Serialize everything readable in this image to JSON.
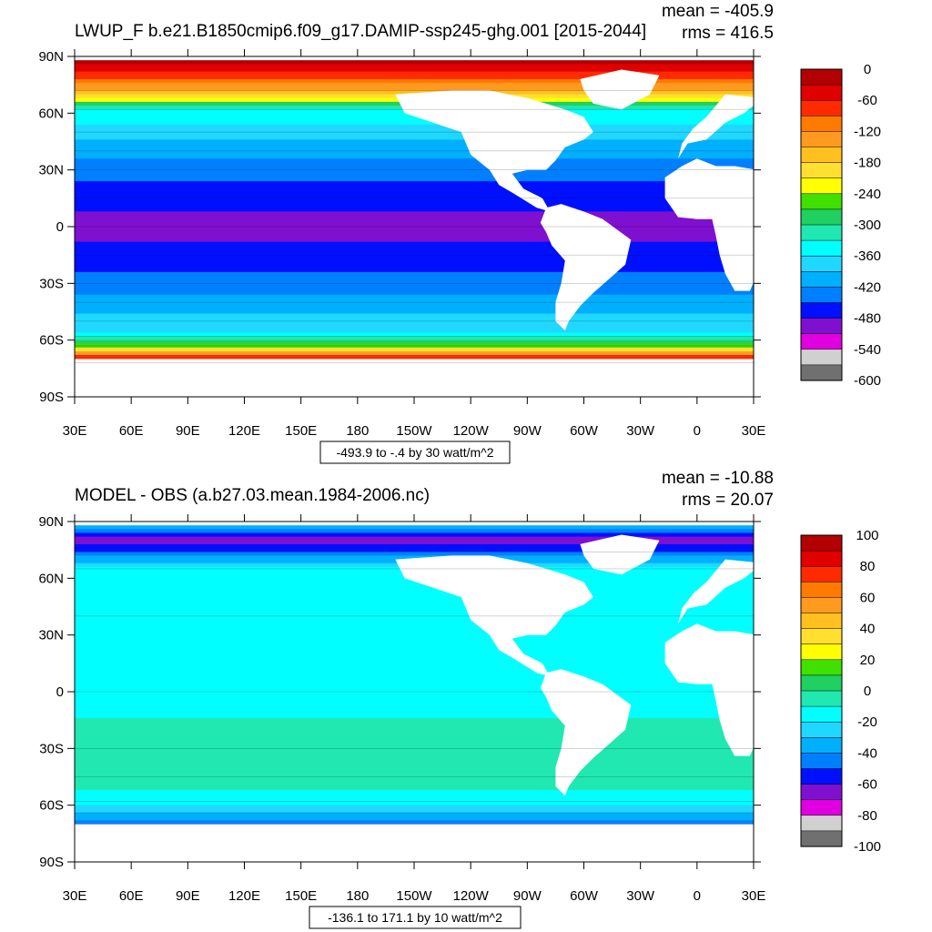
{
  "chart_data": [
    {
      "type": "heatmap",
      "title": "LWUP_F b.e21.B1850cmip6.f09_g17.DAMIP-ssp245-ghg.001 [2015-2044]",
      "stats": {
        "mean": "mean = -405.9",
        "rms": "rms = 416.5"
      },
      "subtitle": "-493.9 to -.4 by 30 watt/m^2",
      "x_ticks": [
        "30E",
        "60E",
        "90E",
        "120E",
        "150E",
        "180",
        "150W",
        "120W",
        "90W",
        "60W",
        "30W",
        "0",
        "30E"
      ],
      "y_ticks": [
        "90N",
        "60N",
        "30N",
        "0",
        "30S",
        "60S",
        "90S"
      ],
      "colorbar": {
        "labels": [
          "0",
          "-60",
          "-120",
          "-180",
          "-240",
          "-300",
          "-360",
          "-420",
          "-480",
          "-540",
          "-600"
        ],
        "colors": [
          "#b30000",
          "#e00000",
          "#ff2a00",
          "#ff7a00",
          "#ff9a20",
          "#ffc020",
          "#ffe030",
          "#ffff00",
          "#40e000",
          "#20d060",
          "#20e8b0",
          "#00ffff",
          "#20d8ff",
          "#00b0ff",
          "#0080ff",
          "#0010ff",
          "#8010d0",
          "#e000e0",
          "#d0d0d0",
          "#707070"
        ]
      },
      "zones": [
        {
          "lat": 87,
          "value": -20
        },
        {
          "lat": 80,
          "value": -80
        },
        {
          "lat": 72,
          "value": -150
        },
        {
          "lat": 62,
          "value": -330
        },
        {
          "lat": 50,
          "value": -380
        },
        {
          "lat": 40,
          "value": -410
        },
        {
          "lat": 30,
          "value": -440
        },
        {
          "lat": 15,
          "value": -470
        },
        {
          "lat": 0,
          "value": -495
        },
        {
          "lat": -15,
          "value": -470
        },
        {
          "lat": -30,
          "value": -440
        },
        {
          "lat": -40,
          "value": -410
        },
        {
          "lat": -50,
          "value": -380
        },
        {
          "lat": -58,
          "value": -350
        },
        {
          "lat": -63,
          "value": -250
        },
        {
          "lat": -68,
          "value": -100
        },
        {
          "lat": -72,
          "value": -30
        }
      ]
    },
    {
      "type": "heatmap",
      "title": "MODEL - OBS (a.b27.03.mean.1984-2006.nc)",
      "stats": {
        "mean": "mean = -10.88",
        "rms": "rms = 20.07"
      },
      "subtitle": "-136.1 to 171.1 by 10 watt/m^2",
      "x_ticks": [
        "30E",
        "60E",
        "90E",
        "120E",
        "150E",
        "180",
        "150W",
        "120W",
        "90W",
        "60W",
        "30W",
        "0",
        "30E"
      ],
      "y_ticks": [
        "90N",
        "60N",
        "30N",
        "0",
        "30S",
        "60S",
        "90S"
      ],
      "colorbar": {
        "labels": [
          "100",
          "80",
          "60",
          "40",
          "20",
          "0",
          "-20",
          "-40",
          "-60",
          "-80",
          "-100"
        ],
        "colors": [
          "#b30000",
          "#e00000",
          "#ff2a00",
          "#ff7a00",
          "#ff9a20",
          "#ffc020",
          "#ffe030",
          "#ffff00",
          "#40e000",
          "#20d060",
          "#20e8b0",
          "#00ffff",
          "#20d8ff",
          "#00b0ff",
          "#0080ff",
          "#0010ff",
          "#8010d0",
          "#e000e0",
          "#d0d0d0",
          "#707070"
        ]
      },
      "zones": [
        {
          "lat": 87,
          "value": -40
        },
        {
          "lat": 80,
          "value": -70
        },
        {
          "lat": 74,
          "value": -50
        },
        {
          "lat": 65,
          "value": -15
        },
        {
          "lat": 40,
          "value": -12
        },
        {
          "lat": 0,
          "value": -12
        },
        {
          "lat": -30,
          "value": -8
        },
        {
          "lat": -45,
          "value": -5
        },
        {
          "lat": -58,
          "value": -15
        },
        {
          "lat": -64,
          "value": -30
        },
        {
          "lat": -70,
          "value": -45
        }
      ]
    }
  ]
}
